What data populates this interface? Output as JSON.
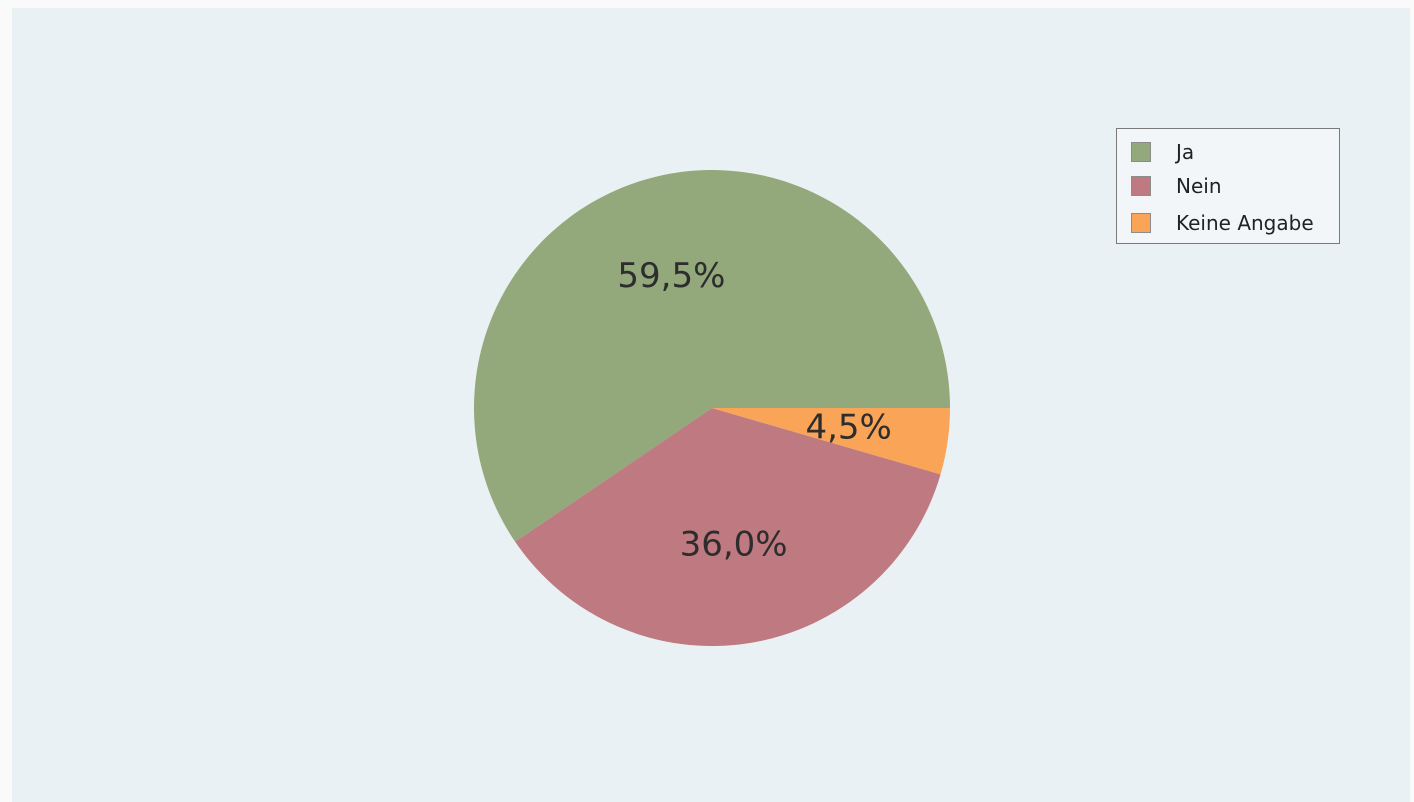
{
  "chart_data": {
    "type": "pie",
    "categories": [
      "Ja",
      "Nein",
      "Keine Angabe"
    ],
    "values": [
      59.5,
      36.0,
      4.5
    ],
    "value_labels": [
      "59,5%",
      "36,0%",
      "4,5%"
    ],
    "colors": [
      "#93a87b",
      "#bf7a81",
      "#f9a457"
    ],
    "legend_position": "top-right"
  }
}
